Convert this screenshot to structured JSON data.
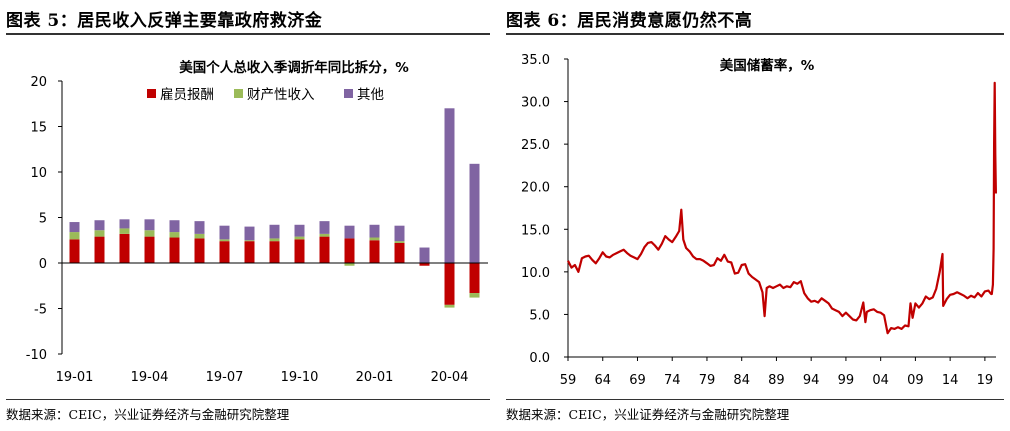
{
  "left_panel": {
    "header": "图表 5：居民收入反弹主要靠政府救济金",
    "source": "数据来源：CEIC，兴业证券经济与金融研究院整理"
  },
  "right_panel": {
    "header": "图表 6：居民消费意愿仍然不高",
    "source": "数据来源：CEIC，兴业证券经济与金融研究院整理"
  },
  "chart_data": [
    {
      "type": "bar",
      "stacked": true,
      "title": "美国个人总收入季调折年同比拆分，%",
      "categories": [
        "19-01",
        "19-02",
        "19-03",
        "19-04",
        "19-05",
        "19-06",
        "19-07",
        "19-08",
        "19-09",
        "19-10",
        "19-11",
        "19-12",
        "20-01",
        "20-02",
        "20-03",
        "20-04",
        "20-05"
      ],
      "x_tick_labels": [
        "19-01",
        "19-04",
        "19-07",
        "19-10",
        "20-01",
        "20-04"
      ],
      "series": [
        {
          "name": "雇员报酬",
          "color": "#c00000",
          "values": [
            2.6,
            2.9,
            3.2,
            2.9,
            2.8,
            2.7,
            2.4,
            2.4,
            2.4,
            2.6,
            2.9,
            2.7,
            2.5,
            2.2,
            -0.3,
            -4.6,
            -3.3
          ]
        },
        {
          "name": "财产性收入",
          "color": "#9bbb59",
          "values": [
            0.8,
            0.7,
            0.6,
            0.7,
            0.6,
            0.5,
            0.2,
            0.1,
            0.3,
            0.3,
            0.3,
            -0.3,
            0.3,
            0.2,
            0.0,
            -0.3,
            -0.5
          ]
        },
        {
          "name": "其他",
          "color": "#8064a2",
          "values": [
            1.1,
            1.1,
            1.0,
            1.2,
            1.3,
            1.4,
            1.5,
            1.5,
            1.5,
            1.3,
            1.4,
            1.4,
            1.4,
            1.7,
            1.7,
            17.0,
            10.9
          ]
        }
      ],
      "ylim": [
        -10,
        20
      ],
      "yticks": [
        "-10",
        "-5",
        "0",
        "5",
        "10",
        "15",
        "20"
      ],
      "legend_position": "top",
      "grid": false
    },
    {
      "type": "line",
      "title": "美国储蓄率，%",
      "x_tick_labels": [
        "59",
        "64",
        "69",
        "74",
        "79",
        "84",
        "89",
        "94",
        "99",
        "04",
        "09",
        "14",
        "19"
      ],
      "xlim": [
        1959,
        2020.6
      ],
      "ylim": [
        0,
        35
      ],
      "yticks": [
        "0.0",
        "5.0",
        "10.0",
        "15.0",
        "20.0",
        "25.0",
        "30.0",
        "35.0"
      ],
      "series": [
        {
          "color": "#c00000",
          "x": [
            1959.0,
            1959.5,
            1960.0,
            1960.5,
            1961.0,
            1961.5,
            1962.0,
            1962.5,
            1963.0,
            1963.5,
            1964.0,
            1964.5,
            1965.0,
            1965.5,
            1966.0,
            1966.5,
            1967.0,
            1967.5,
            1968.0,
            1968.5,
            1969.0,
            1969.5,
            1970.0,
            1970.5,
            1971.0,
            1971.5,
            1972.0,
            1972.5,
            1973.0,
            1973.5,
            1974.0,
            1974.5,
            1975.0,
            1975.3,
            1975.6,
            1976.0,
            1976.5,
            1977.0,
            1977.5,
            1978.0,
            1978.5,
            1979.0,
            1979.5,
            1980.0,
            1980.5,
            1981.0,
            1981.5,
            1982.0,
            1982.5,
            1983.0,
            1983.5,
            1984.0,
            1984.5,
            1985.0,
            1985.5,
            1986.0,
            1986.5,
            1987.0,
            1987.3,
            1987.6,
            1988.0,
            1988.5,
            1989.0,
            1989.5,
            1990.0,
            1990.5,
            1991.0,
            1991.5,
            1992.0,
            1992.5,
            1993.0,
            1993.5,
            1994.0,
            1994.5,
            1995.0,
            1995.5,
            1996.0,
            1996.5,
            1997.0,
            1997.5,
            1998.0,
            1998.5,
            1999.0,
            1999.5,
            2000.0,
            2000.5,
            2001.0,
            2001.5,
            2001.8,
            2002.0,
            2002.5,
            2003.0,
            2003.5,
            2004.0,
            2004.5,
            2005.0,
            2005.5,
            2006.0,
            2006.5,
            2007.0,
            2007.5,
            2008.0,
            2008.3,
            2008.6,
            2009.0,
            2009.5,
            2010.0,
            2010.5,
            2011.0,
            2011.5,
            2012.0,
            2012.5,
            2012.9,
            2013.0,
            2013.5,
            2014.0,
            2014.5,
            2015.0,
            2015.5,
            2016.0,
            2016.5,
            2017.0,
            2017.5,
            2018.0,
            2018.5,
            2019.0,
            2019.5,
            2019.9,
            2020.0,
            2020.15,
            2020.25,
            2020.33,
            2020.42,
            2020.5,
            2020.58
          ],
          "y": [
            11.3,
            10.5,
            10.8,
            10.0,
            11.6,
            11.8,
            11.9,
            11.4,
            11.0,
            11.6,
            12.3,
            11.8,
            11.7,
            12.0,
            12.2,
            12.4,
            12.6,
            12.2,
            11.9,
            11.7,
            11.5,
            12.1,
            12.9,
            13.4,
            13.5,
            13.1,
            12.6,
            13.3,
            14.2,
            13.8,
            13.5,
            14.1,
            14.8,
            17.3,
            13.8,
            12.8,
            12.4,
            11.8,
            11.5,
            11.5,
            11.3,
            11.0,
            10.7,
            10.8,
            11.6,
            11.3,
            12.0,
            11.2,
            11.1,
            9.8,
            9.9,
            10.8,
            10.9,
            9.8,
            9.4,
            9.1,
            8.8,
            7.6,
            4.8,
            8.1,
            8.3,
            8.1,
            8.3,
            8.5,
            8.1,
            8.3,
            8.2,
            8.8,
            8.6,
            8.9,
            7.5,
            6.9,
            6.5,
            6.6,
            6.4,
            6.9,
            6.6,
            6.3,
            5.7,
            5.5,
            5.3,
            4.8,
            5.2,
            4.8,
            4.4,
            4.3,
            4.8,
            6.4,
            4.1,
            5.3,
            5.5,
            5.6,
            5.3,
            5.2,
            4.9,
            2.8,
            3.4,
            3.3,
            3.5,
            3.3,
            3.7,
            3.6,
            6.3,
            4.6,
            6.3,
            5.8,
            6.3,
            7.1,
            6.8,
            7.0,
            8.0,
            10.0,
            12.1,
            6.0,
            6.8,
            7.3,
            7.4,
            7.6,
            7.4,
            7.2,
            6.9,
            7.2,
            7.0,
            7.5,
            7.1,
            7.7,
            7.8,
            7.4,
            7.4,
            8.5,
            12.7,
            25.0,
            32.2,
            23.8,
            19.2
          ]
        }
      ],
      "legend_position": "none",
      "grid": false
    }
  ]
}
